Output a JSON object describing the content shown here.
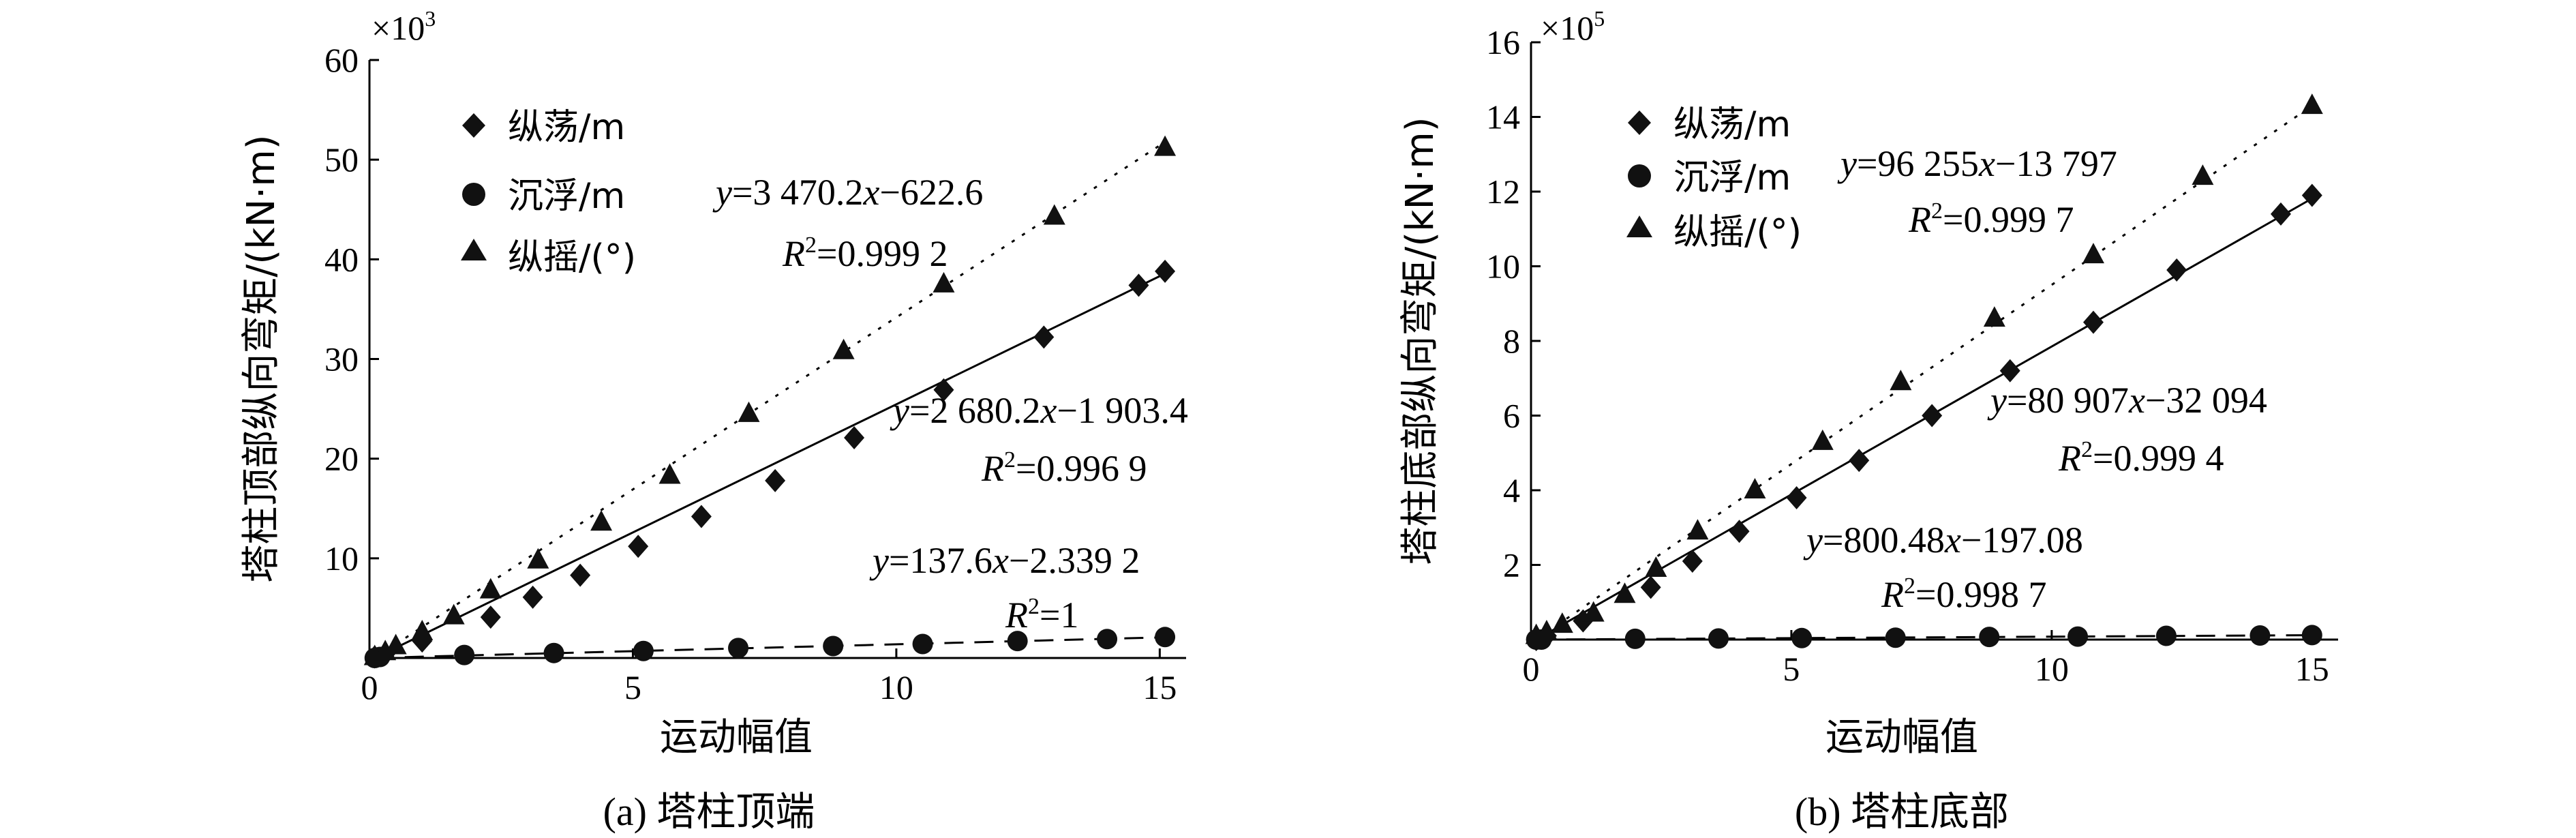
{
  "chart_data": [
    {
      "type": "scatter",
      "caption": "(a) 塔柱顶端",
      "xlabel": "运动幅值",
      "ylabel": "塔柱顶部纵向弯矩/(kN·m)",
      "y_multiplier": "×10",
      "y_multiplier_exp": "3",
      "xlim": [
        0,
        15.5
      ],
      "ylim": [
        0,
        60
      ],
      "xticks": [
        0,
        5,
        10,
        15
      ],
      "yticks": [
        10,
        20,
        30,
        40,
        50,
        60
      ],
      "legend": [
        "纵荡/m",
        "沉浮/m",
        "纵摇/(°)"
      ],
      "series": [
        {
          "name": "纵荡/m",
          "marker": "diamond",
          "line": "solid",
          "x": [
            0.1,
            0.3,
            1.0,
            2.3,
            3.1,
            4.0,
            5.1,
            6.3,
            7.7,
            9.2,
            10.9,
            12.8,
            14.6,
            15.1
          ],
          "y": [
            0.1,
            0.4,
            1.7,
            4.1,
            6.1,
            8.3,
            11.2,
            14.2,
            17.8,
            22.1,
            26.9,
            32.2,
            37.4,
            38.8
          ]
        },
        {
          "name": "沉浮/m",
          "marker": "circle",
          "line": "dashed",
          "x": [
            0.1,
            0.2,
            1.8,
            3.5,
            5.2,
            7.0,
            8.8,
            10.5,
            12.3,
            14.0,
            15.1
          ],
          "y": [
            0.0,
            0.1,
            0.3,
            0.5,
            0.7,
            1.0,
            1.2,
            1.4,
            1.7,
            1.9,
            2.1
          ]
        },
        {
          "name": "纵摇/(°)",
          "marker": "triangle",
          "line": "dotted",
          "x": [
            0.1,
            0.3,
            0.5,
            1.0,
            1.6,
            2.3,
            3.2,
            4.4,
            5.7,
            7.2,
            9.0,
            10.9,
            13.0,
            15.1
          ],
          "y": [
            0.1,
            0.6,
            1.2,
            2.6,
            4.2,
            6.8,
            9.8,
            13.6,
            18.3,
            24.5,
            30.8,
            37.5,
            44.3,
            51.2
          ]
        }
      ],
      "fits": [
        {
          "series": "纵荡/m",
          "slope": 2.6802,
          "intercept": -1.9034,
          "equation": "y=2 680.2x−1 903.4",
          "eq_y": "y",
          "eq_coef": "=2 680.2",
          "eq_x": "x",
          "eq_rest": "−1 903.4",
          "r2": "=0.996 9"
        },
        {
          "series": "沉浮/m",
          "slope": 0.1376,
          "intercept": -0.0023392,
          "equation": "y=137.6x−2.339 2",
          "eq_y": "y",
          "eq_coef": "=137.6",
          "eq_x": "x",
          "eq_rest": "−2.339 2",
          "r2": "=1"
        },
        {
          "series": "纵摇/(°)",
          "slope": 3.4702,
          "intercept": -0.6226,
          "equation": "y=3 470.2x−622.6",
          "eq_y": "y",
          "eq_coef": "=3 470.2",
          "eq_x": "x",
          "eq_rest": "−622.6",
          "r2": "=0.999 2"
        }
      ]
    },
    {
      "type": "scatter",
      "caption": "(b) 塔柱底部",
      "xlabel": "运动幅值",
      "ylabel": "塔柱底部纵向弯矩/(kN·m)",
      "y_multiplier": "×10",
      "y_multiplier_exp": "5",
      "xlim": [
        0,
        15.5
      ],
      "ylim": [
        0,
        16
      ],
      "xticks": [
        0,
        5,
        10,
        15
      ],
      "yticks": [
        2,
        4,
        6,
        8,
        10,
        12,
        14,
        16
      ],
      "legend": [
        "纵荡/m",
        "沉浮/m",
        "纵摇/(°)"
      ],
      "series": [
        {
          "name": "纵荡/m",
          "marker": "diamond",
          "line": "solid",
          "x": [
            0.1,
            0.3,
            1.0,
            2.3,
            3.1,
            4.0,
            5.1,
            6.3,
            7.7,
            9.2,
            10.8,
            12.4,
            14.4,
            15.0
          ],
          "y": [
            0.0,
            0.1,
            0.5,
            1.4,
            2.1,
            2.9,
            3.8,
            4.8,
            6.0,
            7.2,
            8.5,
            9.9,
            11.4,
            11.9
          ]
        },
        {
          "name": "沉浮/m",
          "marker": "circle",
          "line": "dashed",
          "x": [
            0.1,
            0.2,
            2.0,
            3.6,
            5.2,
            7.0,
            8.8,
            10.5,
            12.2,
            14.0,
            15.0
          ],
          "y": [
            0.0,
            0.0,
            0.02,
            0.03,
            0.04,
            0.05,
            0.07,
            0.08,
            0.1,
            0.11,
            0.12
          ]
        },
        {
          "name": "纵摇/(°)",
          "marker": "triangle",
          "line": "dotted",
          "x": [
            0.1,
            0.3,
            0.6,
            1.2,
            1.8,
            2.4,
            3.2,
            4.3,
            5.6,
            7.1,
            8.9,
            10.8,
            12.9,
            15.0
          ],
          "y": [
            0.1,
            0.2,
            0.4,
            0.7,
            1.2,
            1.9,
            2.9,
            4.0,
            5.3,
            6.9,
            8.6,
            10.3,
            12.4,
            14.3
          ]
        }
      ],
      "fits": [
        {
          "series": "纵荡/m",
          "slope": 0.80907,
          "intercept": -0.32094,
          "equation": "y=80 907x−32 094",
          "eq_y": "y",
          "eq_coef": "=80 907",
          "eq_x": "x",
          "eq_rest": "−32 094",
          "r2": "=0.999 4"
        },
        {
          "series": "沉浮/m",
          "slope": 0.0080048,
          "intercept": -0.0019708,
          "equation": "y=800.48x−197.08",
          "eq_y": "y",
          "eq_coef": "=800.48",
          "eq_x": "x",
          "eq_rest": "−197.08",
          "r2": "=0.998 7"
        },
        {
          "series": "纵摇/(°)",
          "slope": 0.96255,
          "intercept": -0.13797,
          "equation": "y=96 255x−13 797",
          "eq_y": "y",
          "eq_coef": "=96 255",
          "eq_x": "x",
          "eq_rest": "−13 797",
          "r2": "=0.999 7"
        }
      ]
    }
  ]
}
